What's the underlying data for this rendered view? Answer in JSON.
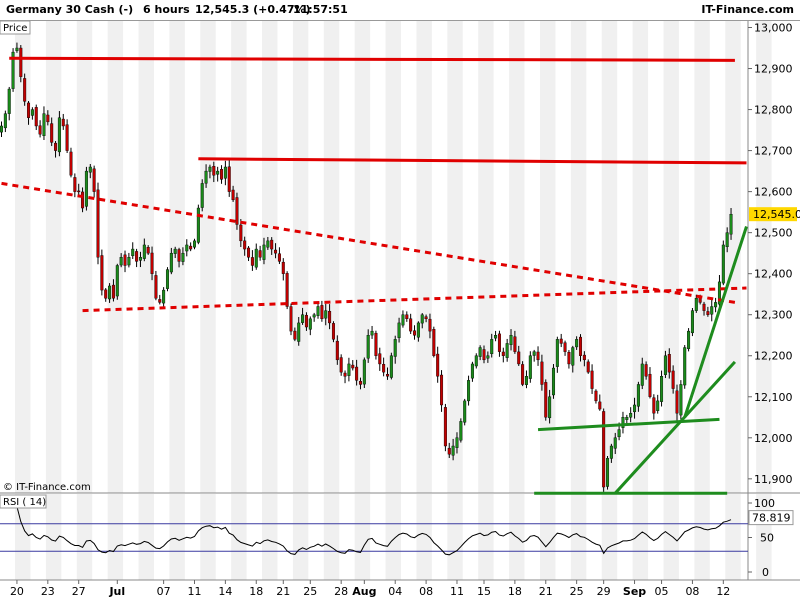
{
  "header": {
    "instrument": "Germany 30 Cash (-)",
    "timeframe": "6 hours",
    "last": "12,545.3 (+0.47%)",
    "time": "11:57:51",
    "brand": "IT-Finance.com"
  },
  "price_panel": {
    "label": "Price",
    "copyright": "© IT-Finance.com"
  },
  "rsi_panel": {
    "label": "RSI ( 14)",
    "value_label": "78.819"
  },
  "colors": {
    "up_candle": "#1a8a1a",
    "down_candle": "#c00000",
    "resistance": "#e00000",
    "trend": "#1e8c1e",
    "last_badge": "#ffd800"
  },
  "chart_data": [
    {
      "type": "candlestick",
      "title": "Germany 30 Cash (-)",
      "timeframe": "6 hours",
      "y_ticks": [
        11900,
        12000,
        12100,
        12200,
        12300,
        12400,
        12500,
        12600,
        12700,
        12800,
        12900,
        13000
      ],
      "y_tick_labels": [
        "11,900",
        "12,000",
        "12,100",
        "12,200",
        "12,300",
        "12,400",
        "12,500",
        "12,600",
        "12,700",
        "12,800",
        "12,900",
        "13,000"
      ],
      "ylim": [
        11860,
        13010
      ],
      "x_ticks": [
        {
          "label": "20",
          "bar": 4,
          "bold": false
        },
        {
          "label": "23",
          "bar": 12,
          "bold": false
        },
        {
          "label": "27",
          "bar": 20,
          "bold": false
        },
        {
          "label": "Jul",
          "bar": 30,
          "bold": true
        },
        {
          "label": "07",
          "bar": 42,
          "bold": false
        },
        {
          "label": "11",
          "bar": 50,
          "bold": false
        },
        {
          "label": "14",
          "bar": 58,
          "bold": false
        },
        {
          "label": "18",
          "bar": 66,
          "bold": false
        },
        {
          "label": "21",
          "bar": 73,
          "bold": false
        },
        {
          "label": "25",
          "bar": 80,
          "bold": false
        },
        {
          "label": "28",
          "bar": 88,
          "bold": false
        },
        {
          "label": "Aug",
          "bar": 94,
          "bold": true
        },
        {
          "label": "04",
          "bar": 102,
          "bold": false
        },
        {
          "label": "08",
          "bar": 110,
          "bold": false
        },
        {
          "label": "11",
          "bar": 118,
          "bold": false
        },
        {
          "label": "15",
          "bar": 125,
          "bold": false
        },
        {
          "label": "18",
          "bar": 133,
          "bold": false
        },
        {
          "label": "21",
          "bar": 141,
          "bold": false
        },
        {
          "label": "25",
          "bar": 149,
          "bold": false
        },
        {
          "label": "29",
          "bar": 156,
          "bold": false
        },
        {
          "label": "Sep",
          "bar": 164,
          "bold": true
        },
        {
          "label": "05",
          "bar": 171,
          "bold": false
        },
        {
          "label": "08",
          "bar": 179,
          "bold": false
        },
        {
          "label": "12",
          "bar": 187,
          "bold": false
        }
      ],
      "closes": [
        12760,
        12790,
        12850,
        12940,
        12950,
        12880,
        12820,
        12780,
        12800,
        12760,
        12740,
        12790,
        12770,
        12720,
        12700,
        12780,
        12760,
        12700,
        12640,
        12600,
        12600,
        12560,
        12650,
        12660,
        12600,
        12440,
        12360,
        12340,
        12370,
        12340,
        12420,
        12440,
        12420,
        12440,
        12460,
        12430,
        12440,
        12470,
        12450,
        12400,
        12340,
        12330,
        12360,
        12410,
        12450,
        12460,
        12430,
        12450,
        12470,
        12460,
        12480,
        12560,
        12620,
        12650,
        12660,
        12640,
        12650,
        12630,
        12660,
        12600,
        12580,
        12520,
        12480,
        12460,
        12440,
        12420,
        12460,
        12440,
        12470,
        12480,
        12460,
        12450,
        12430,
        12400,
        12320,
        12260,
        12240,
        12280,
        12300,
        12270,
        12290,
        12300,
        12320,
        12290,
        12310,
        12280,
        12240,
        12190,
        12160,
        12150,
        12180,
        12170,
        12140,
        12130,
        12190,
        12250,
        12260,
        12200,
        12180,
        12160,
        12150,
        12200,
        12240,
        12280,
        12300,
        12290,
        12260,
        12250,
        12280,
        12300,
        12290,
        12260,
        12200,
        12150,
        12080,
        11980,
        11960,
        11980,
        12000,
        12040,
        12090,
        12140,
        12180,
        12200,
        12220,
        12190,
        12200,
        12240,
        12250,
        12210,
        12200,
        12230,
        12250,
        12210,
        12180,
        12130,
        12150,
        12200,
        12210,
        12190,
        12130,
        12050,
        12100,
        12170,
        12240,
        12230,
        12210,
        12180,
        12220,
        12240,
        12200,
        12190,
        12160,
        12120,
        12090,
        12070,
        11880,
        11950,
        11980,
        12000,
        12020,
        12050,
        12050,
        12060,
        12080,
        12130,
        12180,
        12150,
        12100,
        12060,
        12090,
        12150,
        12200,
        12160,
        12120,
        12060,
        12130,
        12220,
        12260,
        12310,
        12340,
        12330,
        12310,
        12300,
        12320,
        12330,
        12380,
        12470,
        12500,
        12545
      ]
    },
    {
      "type": "line",
      "title": "RSI ( 14)",
      "y_ticks": [
        0,
        50,
        100
      ],
      "ylim": [
        0,
        100
      ],
      "levels": [
        30,
        70
      ],
      "last_value": 78.819
    }
  ],
  "lines": [
    {
      "style": "solid",
      "color": "red",
      "from": {
        "bar": 2,
        "price": 12925
      },
      "to": {
        "bar": 190,
        "price": 12920
      }
    },
    {
      "style": "solid",
      "color": "red",
      "from": {
        "bar": 51,
        "price": 12680
      },
      "to": {
        "bar": 193,
        "price": 12670
      }
    },
    {
      "style": "dashed",
      "color": "red",
      "from": {
        "bar": 0,
        "price": 12620
      },
      "to": {
        "bar": 190,
        "price": 12330
      }
    },
    {
      "style": "dashed",
      "color": "red",
      "from": {
        "bar": 21,
        "price": 12310
      },
      "to": {
        "bar": 193,
        "price": 12365
      }
    },
    {
      "style": "solid",
      "color": "green",
      "from": {
        "bar": 139,
        "price": 12020
      },
      "to": {
        "bar": 186,
        "price": 12045
      }
    },
    {
      "style": "solid",
      "color": "green",
      "from": {
        "bar": 138,
        "price": 11865
      },
      "to": {
        "bar": 188,
        "price": 11865
      }
    },
    {
      "style": "solid",
      "color": "green",
      "from": {
        "bar": 159,
        "price": 11865
      },
      "to": {
        "bar": 190,
        "price": 12185
      }
    },
    {
      "style": "solid",
      "color": "green",
      "from": {
        "bar": 177,
        "price": 12050
      },
      "to": {
        "bar": 193,
        "price": 12515
      }
    }
  ]
}
